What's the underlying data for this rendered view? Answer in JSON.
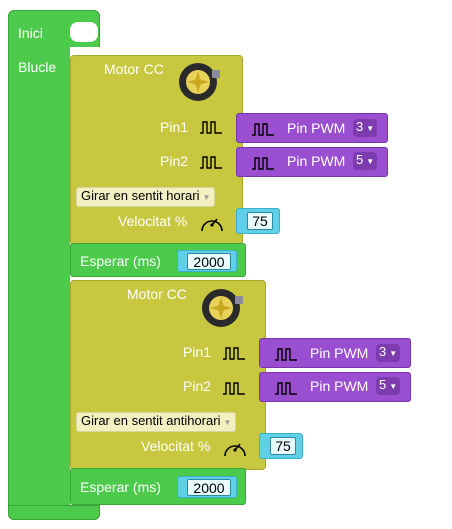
{
  "program": {
    "start_label": "Inici",
    "loop_label": "Blucle"
  },
  "motors": [
    {
      "title": "Motor CC",
      "pin1_label": "Pin1",
      "pin2_label": "Pin2",
      "pin1_block": {
        "label": "Pin PWM",
        "value": "3"
      },
      "pin2_block": {
        "label": "Pin PWM",
        "value": "5"
      },
      "direction": "Girar en sentit horari",
      "speed_label": "Velocitat %",
      "speed": "75"
    },
    {
      "title": "Motor CC",
      "pin1_label": "Pin1",
      "pin2_label": "Pin2",
      "pin1_block": {
        "label": "Pin PWM",
        "value": "3"
      },
      "pin2_block": {
        "label": "Pin PWM",
        "value": "5"
      },
      "direction": "Girar en sentit antihorari",
      "speed_label": "Velocitat %",
      "speed": "75"
    }
  ],
  "waits": [
    {
      "label": "Esperar (ms)",
      "value": "2000"
    },
    {
      "label": "Esperar (ms)",
      "value": "2000"
    }
  ],
  "icons": {
    "motor": "dc-motor-icon",
    "pulse": "pwm-pulse-icon",
    "gauge": "speedometer-icon"
  },
  "colors": {
    "control_block": "#4cca4c",
    "motor_block": "#c8c840",
    "pin_block": "#9a4fd0",
    "number_block": "#5fd0e8"
  }
}
